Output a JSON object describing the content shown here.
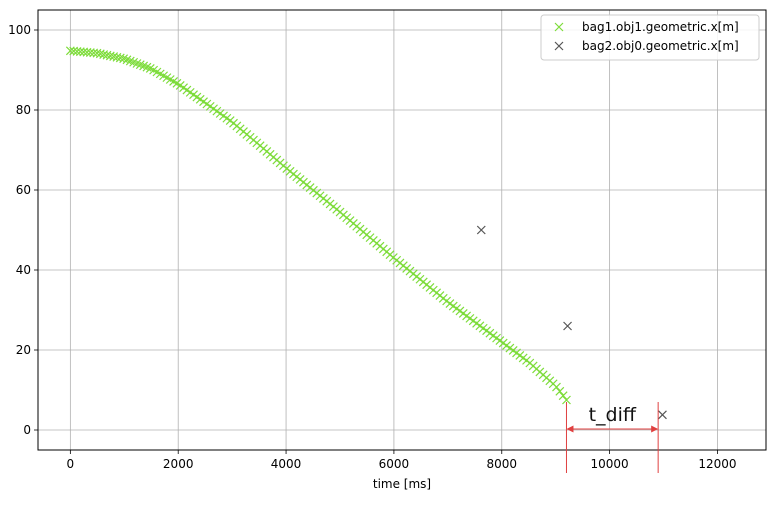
{
  "chart_data": {
    "type": "scatter",
    "title": "",
    "xlabel": "time [ms]",
    "ylabel": "",
    "xlim": [
      -600,
      12900
    ],
    "ylim": [
      -5,
      105
    ],
    "xticks": [
      0,
      2000,
      4000,
      6000,
      8000,
      10000,
      12000
    ],
    "yticks": [
      0,
      20,
      40,
      60,
      80,
      100
    ],
    "xtick_labels": [
      "0",
      "2000",
      "4000",
      "6000",
      "8000",
      "10000",
      "12000"
    ],
    "ytick_labels": [
      "0",
      "20",
      "40",
      "60",
      "80",
      "100"
    ],
    "grid": true,
    "legend_position": "top-right",
    "marker": "x",
    "series": [
      {
        "name": "bag1.obj1.geometric.x[m]",
        "color": "#7ddc3a",
        "x_range": [
          0,
          9200
        ],
        "n_points": 150,
        "profile": [
          [
            0,
            94.8
          ],
          [
            500,
            94.2
          ],
          [
            1000,
            92.8
          ],
          [
            1500,
            90.3
          ],
          [
            2000,
            86.5
          ],
          [
            2500,
            81.8
          ],
          [
            3000,
            77
          ],
          [
            3500,
            71.3
          ],
          [
            4000,
            65.5
          ],
          [
            5000,
            54.5
          ],
          [
            6000,
            43
          ],
          [
            7000,
            32
          ],
          [
            8000,
            22
          ],
          [
            8500,
            17
          ],
          [
            9000,
            11
          ],
          [
            9200,
            7.5
          ]
        ]
      },
      {
        "name": "bag2.obj0.geometric.x[m]",
        "color": "#555555",
        "points": [
          [
            7620,
            50
          ],
          [
            9220,
            26
          ],
          [
            10980,
            3.8
          ]
        ]
      }
    ],
    "annotations": [
      {
        "text": "t_diff",
        "color": "#e04040",
        "x_start": 9200,
        "x_end": 10900
      }
    ]
  }
}
